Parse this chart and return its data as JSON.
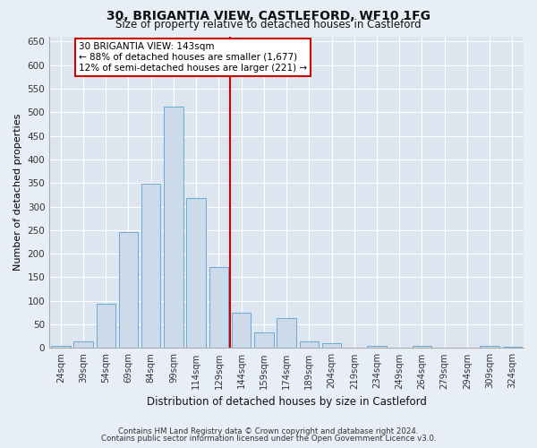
{
  "title": "30, BRIGANTIA VIEW, CASTLEFORD, WF10 1FG",
  "subtitle": "Size of property relative to detached houses in Castleford",
  "xlabel": "Distribution of detached houses by size in Castleford",
  "ylabel": "Number of detached properties",
  "bar_labels": [
    "24sqm",
    "39sqm",
    "54sqm",
    "69sqm",
    "84sqm",
    "99sqm",
    "114sqm",
    "129sqm",
    "144sqm",
    "159sqm",
    "174sqm",
    "189sqm",
    "204sqm",
    "219sqm",
    "234sqm",
    "249sqm",
    "264sqm",
    "279sqm",
    "294sqm",
    "309sqm",
    "324sqm"
  ],
  "bar_values": [
    5,
    15,
    93,
    245,
    348,
    512,
    318,
    172,
    75,
    33,
    63,
    14,
    10,
    0,
    4,
    0,
    5,
    0,
    0,
    5,
    3
  ],
  "bar_color": "#ccdaea",
  "bar_edge_color": "#6aaad4",
  "ref_line_index": 8,
  "annotation_line1": "30 BRIGANTIA VIEW: 143sqm",
  "annotation_line2": "← 88% of detached houses are smaller (1,677)",
  "annotation_line3": "12% of semi-detached houses are larger (221) →",
  "ref_line_color": "#cc0000",
  "ylim": [
    0,
    660
  ],
  "yticks": [
    0,
    50,
    100,
    150,
    200,
    250,
    300,
    350,
    400,
    450,
    500,
    550,
    600,
    650
  ],
  "footer1": "Contains HM Land Registry data © Crown copyright and database right 2024.",
  "footer2": "Contains public sector information licensed under the Open Government Licence v3.0.",
  "fig_bg_color": "#e8eef5",
  "plot_bg_color": "#dde6f0"
}
